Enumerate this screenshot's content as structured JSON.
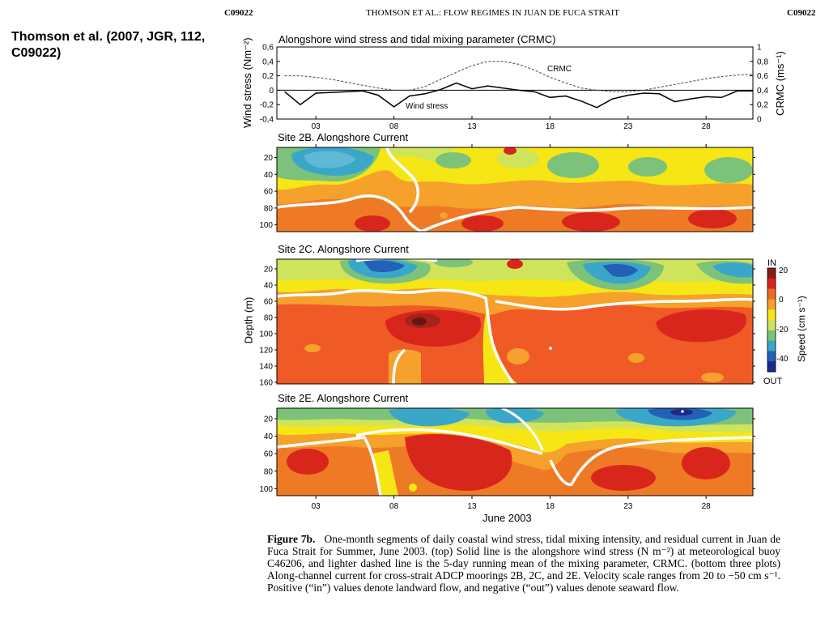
{
  "header": {
    "left_code": "C09022",
    "running_title": "THOMSON ET AL.: FLOW REGIMES IN JUAN DE FUCA STRAIT",
    "right_code": "C09022"
  },
  "sidebar": {
    "citation": "Thomson et al. (2007, JGR, 112, C09022)"
  },
  "figure": {
    "top_panel": {
      "title": "Alongshore wind stress and tidal mixing parameter (CRMC)",
      "ylabel_left": "Wind stress (Nm⁻²)",
      "ylabel_right": "CRMC (ms⁻¹)",
      "label_crmc": "CRMC",
      "label_wind": "Wind stress"
    },
    "panel_2b_title": "Site 2B.  Alongshore Current",
    "panel_2c_title": "Site 2C.  Alongshore Current",
    "panel_2e_title": "Site 2E.  Alongshore Current",
    "depth_label": "Depth (m)",
    "xlabel": "June 2003",
    "x_ticks": [
      "03",
      "08",
      "13",
      "18",
      "23",
      "28"
    ],
    "depth_ticks_short": [
      "20",
      "40",
      "60",
      "80",
      "100"
    ],
    "depth_ticks_long": [
      "20",
      "40",
      "60",
      "80",
      "100",
      "120",
      "140",
      "160"
    ],
    "colorbar": {
      "top_label": "IN",
      "bottom_label": "OUT",
      "title": "Speed (cm s⁻¹)",
      "ticks": [
        "20",
        "0",
        "-20",
        "-40"
      ],
      "colors": [
        "#8b1a1a",
        "#d9261c",
        "#ee6a24",
        "#f5a12c",
        "#f6e616",
        "#cfe45a",
        "#7cc27a",
        "#3aa7c9",
        "#2361b8",
        "#1b2a8a"
      ]
    }
  },
  "caption": {
    "label": "Figure 7b.",
    "text": "One-month segments of daily coastal wind stress, tidal mixing intensity, and residual current in Juan de Fuca Strait for Summer, June 2003. (top) Solid line is the alongshore wind stress (N m⁻²) at meteorological buoy C46206, and lighter dashed line is the 5-day running mean of the mixing parameter, CRMC. (bottom three plots) Along-channel current for cross-strait ADCP moorings 2B, 2C, and 2E. Velocity scale ranges from 20 to −50 cm s⁻¹. Positive (“in”) values denote landward flow, and negative (“out”) values denote seaward flow."
  },
  "chart_data": {
    "type": "line",
    "title": "Alongshore wind stress and tidal mixing parameter (CRMC)",
    "xlabel": "June 2003",
    "ylabel": "Wind stress (Nm⁻²)",
    "ylabel_right": "CRMC (ms⁻¹)",
    "xlim": [
      0.5,
      31
    ],
    "ylim": [
      -0.4,
      0.6
    ],
    "ylim_right": [
      0,
      1
    ],
    "grid": false,
    "x": [
      1,
      2,
      3,
      4,
      5,
      6,
      7,
      8,
      9,
      10,
      11,
      12,
      13,
      14,
      15,
      16,
      17,
      18,
      19,
      20,
      21,
      22,
      23,
      24,
      25,
      26,
      27,
      28,
      29,
      30,
      31
    ],
    "series": [
      {
        "name": "Wind stress",
        "axis": "left",
        "style": "solid",
        "values": [
          -0.02,
          -0.2,
          -0.04,
          -0.03,
          -0.02,
          -0.01,
          -0.07,
          -0.23,
          -0.08,
          -0.05,
          0.01,
          0.1,
          0.02,
          0.06,
          0.03,
          0.0,
          -0.02,
          -0.1,
          -0.08,
          -0.15,
          -0.24,
          -0.12,
          -0.07,
          -0.04,
          -0.05,
          -0.16,
          -0.12,
          -0.09,
          -0.1,
          -0.01,
          -0.01
        ]
      },
      {
        "name": "CRMC",
        "axis": "right",
        "style": "dashed",
        "values": [
          0.6,
          0.6,
          0.58,
          0.55,
          0.51,
          0.47,
          0.43,
          0.4,
          0.4,
          0.45,
          0.55,
          0.65,
          0.74,
          0.8,
          0.8,
          0.76,
          0.68,
          0.58,
          0.5,
          0.43,
          0.4,
          0.38,
          0.38,
          0.4,
          0.44,
          0.48,
          0.52,
          0.56,
          0.59,
          0.61,
          0.62
        ]
      }
    ]
  }
}
